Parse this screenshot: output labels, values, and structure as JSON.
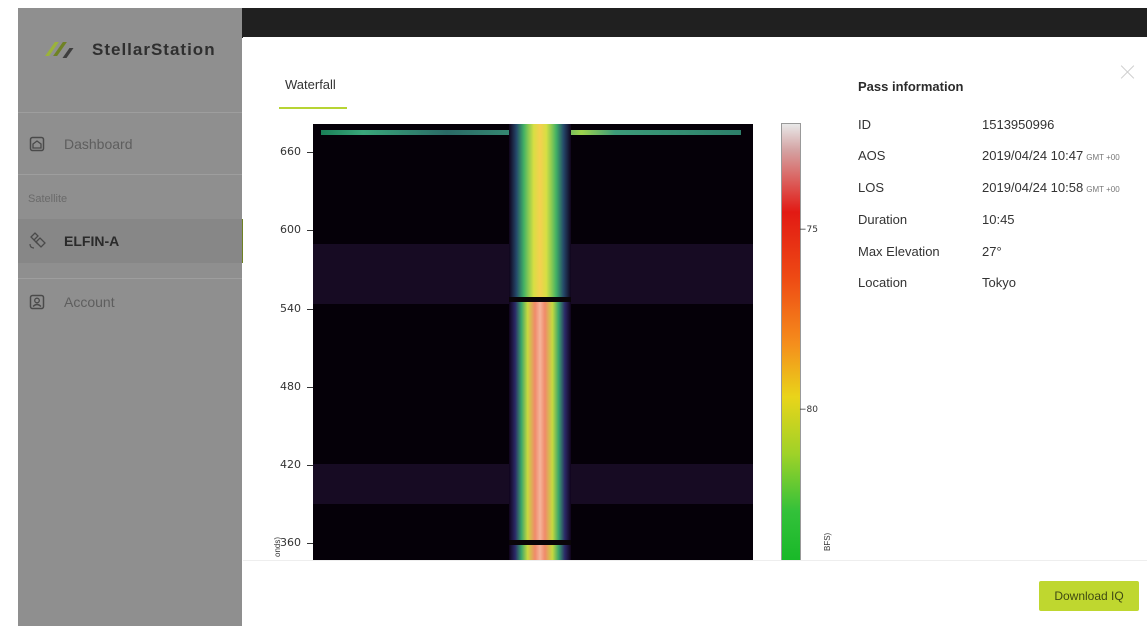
{
  "app": {
    "logo_text": "StellarStation"
  },
  "sidebar": {
    "items": [
      {
        "label": "Dashboard",
        "icon": "home-icon"
      },
      {
        "label": "ELFIN-A",
        "icon": "satellite-icon"
      },
      {
        "label": "Account",
        "icon": "account-icon"
      }
    ],
    "section_label": "Satellite"
  },
  "modal": {
    "tab_label": "Waterfall",
    "pass_info_title": "Pass information",
    "pass_info": [
      {
        "key": "ID",
        "value": "1513950996",
        "tz": ""
      },
      {
        "key": "AOS",
        "value": "2019/04/24 10:47",
        "tz": "GMT +00"
      },
      {
        "key": "LOS",
        "value": "2019/04/24 10:58",
        "tz": "GMT +00"
      },
      {
        "key": "Duration",
        "value": "10:45",
        "tz": ""
      },
      {
        "key": "Max Elevation",
        "value": "27°",
        "tz": ""
      },
      {
        "key": "Location",
        "value": "Tokyo",
        "tz": ""
      }
    ],
    "download_label": "Download IQ"
  },
  "waterfall": {
    "y_ticks": [
      "660",
      "600",
      "540",
      "480",
      "420",
      "360"
    ],
    "y_axis_label_fragment": "onds)",
    "colorbar_ticks": [
      "−75",
      "−80"
    ],
    "colorbar_label_fragment": "BFS)"
  },
  "colors": {
    "accent": "#bfd72f",
    "sidebar_bg": "#8f8f8f",
    "topbar_bg": "#202020"
  }
}
